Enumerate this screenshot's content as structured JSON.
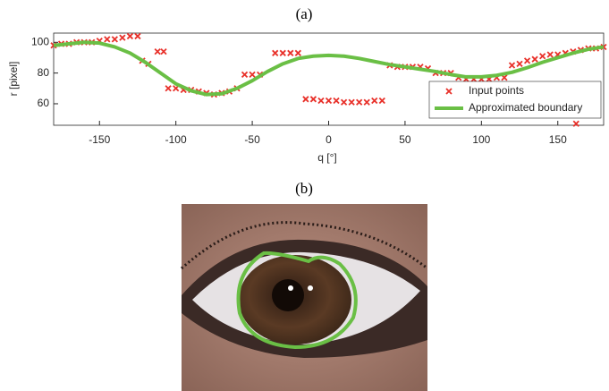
{
  "chart_data": {
    "type": "scatter",
    "title": "(a)",
    "x_label": "q [°]",
    "y_label": "r [pixel]",
    "xlim": [
      -180,
      180
    ],
    "xticks": [
      -150,
      -100,
      -50,
      0,
      50,
      100,
      150
    ],
    "ylim": [
      46,
      106
    ],
    "yticks": [
      60,
      80,
      100
    ],
    "legend": "lower right",
    "series": [
      {
        "name": "Input points",
        "type": "scatter",
        "color": "#e8312a",
        "x": [
          -180,
          -175,
          -170,
          -165,
          -160,
          -155,
          -150,
          -145,
          -140,
          -135,
          -130,
          -125,
          -122,
          -118,
          -112,
          -108,
          -105,
          -100,
          -95,
          -90,
          -85,
          -80,
          -75,
          -70,
          -65,
          -60,
          -55,
          -50,
          -45,
          -35,
          -30,
          -25,
          -20,
          -15,
          -10,
          -5,
          0,
          5,
          10,
          15,
          20,
          25,
          30,
          35,
          40,
          45,
          50,
          55,
          60,
          65,
          70,
          75,
          80,
          85,
          90,
          95,
          100,
          105,
          110,
          115,
          120,
          125,
          130,
          135,
          140,
          145,
          150,
          155,
          160,
          165,
          170,
          175,
          180,
          162
        ],
        "values": [
          98,
          99,
          99,
          100,
          100,
          100,
          101,
          102,
          102,
          103,
          104,
          104,
          88,
          86,
          94,
          94,
          70,
          70,
          69,
          69,
          68,
          67,
          66,
          67,
          68,
          70,
          79,
          79,
          79,
          93,
          93,
          93,
          93,
          63,
          63,
          62,
          62,
          62,
          61,
          61,
          61,
          61,
          62,
          62,
          85,
          84,
          84,
          84,
          84,
          83,
          80,
          80,
          80,
          77,
          76,
          76,
          76,
          76,
          77,
          77,
          85,
          86,
          88,
          89,
          91,
          92,
          92,
          93,
          94,
          95,
          96,
          96,
          97,
          47
        ]
      },
      {
        "name": "Approximated boundary",
        "type": "line",
        "color": "#6abf45",
        "x": [
          -180,
          -170,
          -160,
          -150,
          -140,
          -130,
          -120,
          -110,
          -100,
          -90,
          -80,
          -70,
          -60,
          -50,
          -40,
          -30,
          -20,
          -10,
          0,
          10,
          20,
          30,
          40,
          50,
          60,
          70,
          80,
          90,
          100,
          110,
          120,
          130,
          140,
          150,
          160,
          170,
          180
        ],
        "values": [
          98,
          99,
          100,
          99.5,
          97,
          93,
          87,
          80,
          73,
          68.5,
          66,
          66.5,
          70,
          75,
          81,
          86,
          89.5,
          91,
          91.5,
          91,
          89.5,
          87.5,
          85.5,
          84,
          82.5,
          81,
          79,
          77.5,
          77.5,
          78.5,
          80.5,
          83.5,
          87,
          90,
          93,
          95.5,
          97
        ]
      }
    ]
  },
  "photo_label": "(b)"
}
